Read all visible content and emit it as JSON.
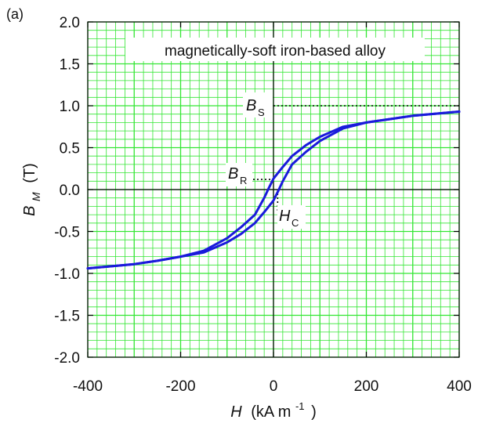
{
  "panel_label": "(a)",
  "chart_data": {
    "type": "line",
    "title": "magnetically-soft iron-based alloy",
    "xlabel": {
      "main": "H",
      "unit": "(kA m",
      "exp": "-1",
      "close": ")"
    },
    "ylabel": {
      "main": "B",
      "sub": "M",
      "unit": "(T)"
    },
    "xlim": [
      -400,
      400
    ],
    "ylim": [
      -2.0,
      2.0
    ],
    "x_ticks": [
      -400,
      -200,
      0,
      200,
      400
    ],
    "x_tick_labels": [
      "-400",
      "-200",
      "0",
      "200",
      "400"
    ],
    "y_ticks": [
      -2.0,
      -1.5,
      -1.0,
      -0.5,
      0.0,
      0.5,
      1.0,
      1.5,
      2.0
    ],
    "y_tick_labels": [
      "-2.0",
      "-1.5",
      "-1.0",
      "-0.5",
      "0.0",
      "0.5",
      "1.0",
      "1.5",
      "2.0"
    ],
    "grid": true,
    "grid_color": "#33e633",
    "line_color": "#1a1adb",
    "series": [
      {
        "branch": "descending",
        "x": [
          400,
          300,
          250,
          200,
          150,
          100,
          70,
          40,
          20,
          10,
          0,
          -10,
          -20,
          -40,
          -70,
          -100,
          -150,
          -200,
          -250,
          -300,
          -400
        ],
        "y": [
          0.93,
          0.88,
          0.84,
          0.8,
          0.75,
          0.63,
          0.53,
          0.4,
          0.27,
          0.2,
          0.13,
          0.02,
          -0.1,
          -0.3,
          -0.45,
          -0.58,
          -0.73,
          -0.8,
          -0.85,
          -0.89,
          -0.94
        ]
      },
      {
        "branch": "ascending",
        "x": [
          -400,
          -300,
          -250,
          -200,
          -150,
          -100,
          -70,
          -40,
          -20,
          -10,
          0,
          10,
          20,
          40,
          70,
          100,
          150,
          200,
          250,
          300,
          400
        ],
        "y": [
          -0.94,
          -0.89,
          -0.85,
          -0.8,
          -0.75,
          -0.63,
          -0.53,
          -0.4,
          -0.27,
          -0.2,
          -0.13,
          -0.02,
          0.1,
          0.3,
          0.45,
          0.58,
          0.73,
          0.8,
          0.84,
          0.88,
          0.93
        ]
      }
    ],
    "annotations": {
      "Bs": {
        "label": "B",
        "sub": "S",
        "y": 1.0
      },
      "Br": {
        "label": "B",
        "sub": "R",
        "y": 0.13
      },
      "Hc": {
        "label": "H",
        "sub": "C",
        "x": 9
      }
    }
  }
}
